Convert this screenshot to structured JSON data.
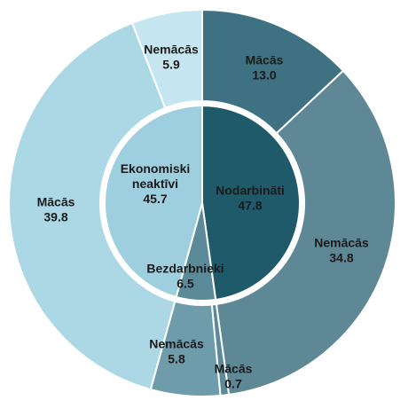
{
  "chart_data": {
    "type": "pie",
    "inner": [
      {
        "name": "Nodarbināti",
        "value": 47.8,
        "value_label": "47.8",
        "color": "#1f5a6a"
      },
      {
        "name": "Bezdarbnieki",
        "value": 6.5,
        "value_label": "6.5",
        "color": "#5b8b99"
      },
      {
        "name": "Ekonomiski neaktīvi",
        "value": 45.7,
        "value_label": "45.7",
        "color": "#9ecfdf"
      }
    ],
    "outer": [
      {
        "name": "Mācās",
        "value": 13.0,
        "value_label": "13.0",
        "color": "#3e7182"
      },
      {
        "name": "Nemācās",
        "value": 34.8,
        "value_label": "34.8",
        "color": "#5e8896"
      },
      {
        "name": "Mācās",
        "value": 0.7,
        "value_label": "0.7",
        "color": "#5b8b99"
      },
      {
        "name": "Nemācās",
        "value": 5.8,
        "value_label": "5.8",
        "color": "#6e9cab"
      },
      {
        "name": "Mācās",
        "value": 39.8,
        "value_label": "39.8",
        "color": "#acd8e6"
      },
      {
        "name": "Nemācās",
        "value": 5.9,
        "value_label": "5.9",
        "color": "#c5e6f0"
      }
    ]
  }
}
